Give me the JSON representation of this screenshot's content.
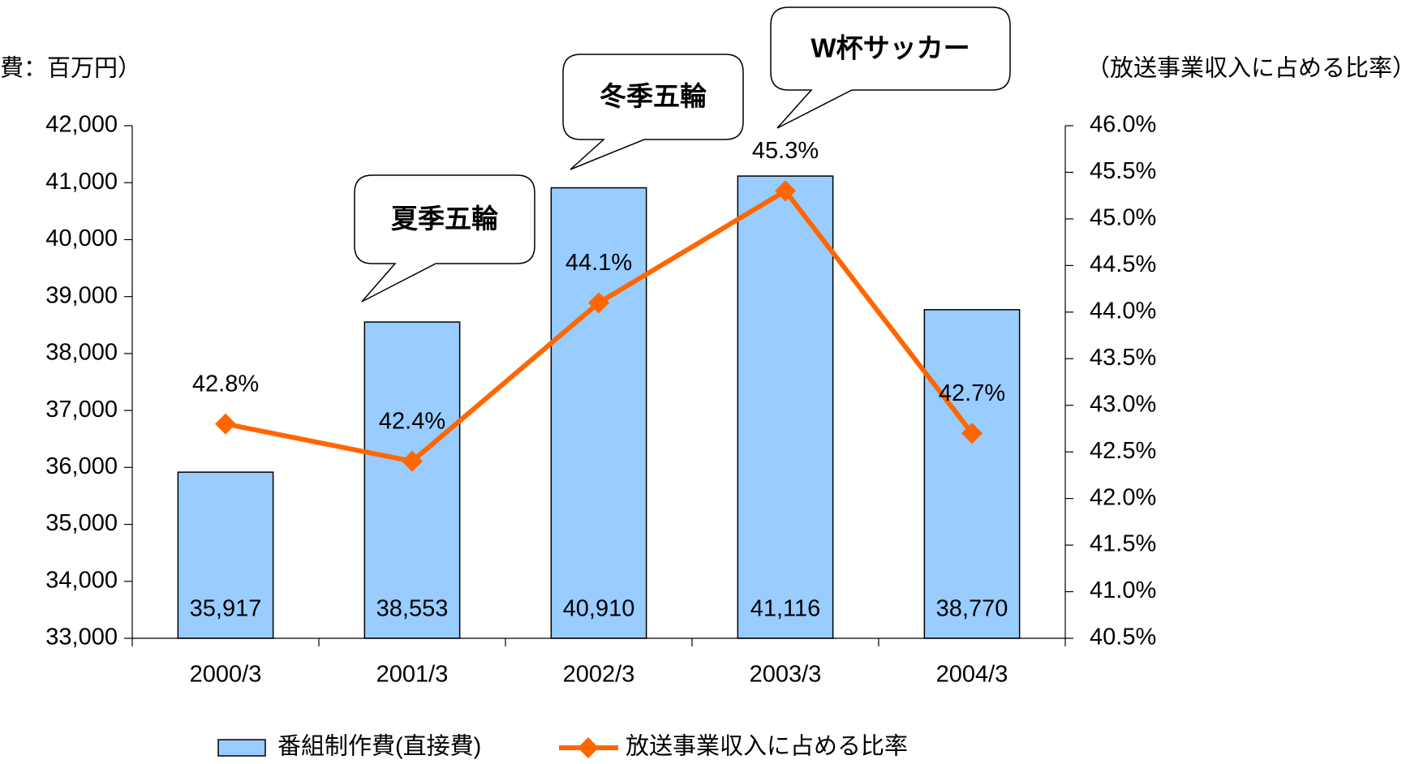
{
  "chart_data": {
    "type": "bar",
    "y_label": "費：百万円）",
    "y2_label": "（放送事業収入に占める比率）",
    "annotations": [
      "夏季五輪",
      "冬季五輪",
      "W杯サッカー"
    ],
    "categories": [
      "2000/3",
      "2001/3",
      "2002/3",
      "2003/3",
      "2004/3"
    ],
    "series": [
      {
        "name": "番組制作費(直接費)",
        "color": "#99ccff",
        "values": [
          35917,
          38553,
          40910,
          41116,
          38770
        ],
        "value_labels": [
          "35,917",
          "38,553",
          "40,910",
          "41,116",
          "38,770"
        ]
      },
      {
        "name": "放送事業収入に占める比率",
        "color": "#ff6600",
        "type": "line",
        "axis": "y2",
        "values": [
          42.8,
          42.4,
          44.1,
          45.3,
          42.7
        ],
        "value_labels": [
          "42.8%",
          "42.4%",
          "44.1%",
          "45.3%",
          "42.7%"
        ]
      }
    ],
    "ylim": [
      33000,
      42000
    ],
    "yticks": [
      {
        "value": 33000,
        "label": "33,000"
      },
      {
        "value": 34000,
        "label": "34,000"
      },
      {
        "value": 35000,
        "label": "35,000"
      },
      {
        "value": 36000,
        "label": "36,000"
      },
      {
        "value": 37000,
        "label": "37,000"
      },
      {
        "value": 38000,
        "label": "38,000"
      },
      {
        "value": 39000,
        "label": "39,000"
      },
      {
        "value": 40000,
        "label": "40,000"
      },
      {
        "value": 41000,
        "label": "41,000"
      },
      {
        "value": 42000,
        "label": "42,000"
      }
    ],
    "y2lim": [
      40.5,
      46.0
    ],
    "y2ticks": [
      {
        "value": 40.5,
        "label": "40.5%"
      },
      {
        "value": 41.0,
        "label": "41.0%"
      },
      {
        "value": 41.5,
        "label": "41.5%"
      },
      {
        "value": 42.0,
        "label": "42.0%"
      },
      {
        "value": 42.5,
        "label": "42.5%"
      },
      {
        "value": 43.0,
        "label": "43.0%"
      },
      {
        "value": 43.5,
        "label": "43.5%"
      },
      {
        "value": 44.0,
        "label": "44.0%"
      },
      {
        "value": 44.5,
        "label": "44.5%"
      },
      {
        "value": 45.0,
        "label": "45.0%"
      },
      {
        "value": 45.5,
        "label": "45.5%"
      },
      {
        "value": 46.0,
        "label": "46.0%"
      }
    ],
    "grid": false,
    "legend": "bottom"
  }
}
